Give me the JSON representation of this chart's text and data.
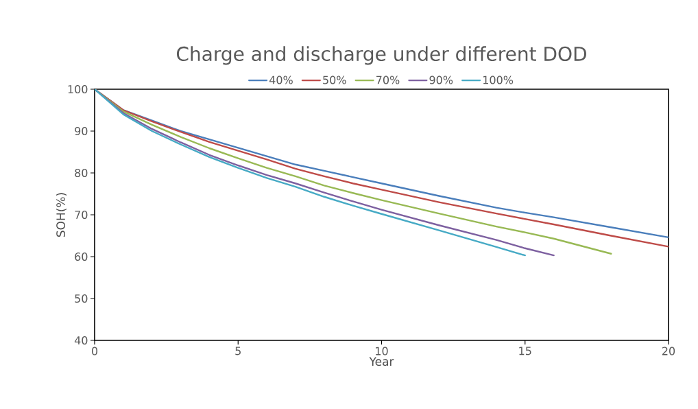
{
  "chart_data": {
    "type": "line",
    "title": "Charge and discharge under different DOD",
    "xlabel": "Year",
    "ylabel": "SOH(%)",
    "x": [
      0,
      1,
      2,
      3,
      4,
      5,
      6,
      7,
      8,
      9,
      10,
      12,
      14,
      15,
      16,
      18,
      20
    ],
    "series": [
      {
        "name": "40%",
        "color": "#4a7ebb",
        "values": [
          100,
          95,
          92.5,
          90,
          88,
          86,
          84,
          82,
          80.5,
          79,
          77.5,
          74.5,
          71.7,
          70.5,
          69.4,
          67,
          64.6
        ]
      },
      {
        "name": "50%",
        "color": "#be4b48",
        "values": [
          100,
          95,
          92.3,
          89.8,
          87.4,
          85.3,
          83.2,
          81,
          79.2,
          77.5,
          76,
          73,
          70.3,
          69,
          67.7,
          65,
          62.4
        ]
      },
      {
        "name": "70%",
        "color": "#98b954",
        "values": [
          100,
          94.7,
          91.5,
          88.6,
          85.9,
          83.5,
          81.2,
          79.2,
          77,
          75.2,
          73.5,
          70.3,
          67.2,
          65.8,
          64.3,
          60.7,
          null
        ]
      },
      {
        "name": "90%",
        "color": "#7d60a0",
        "values": [
          100,
          94.3,
          90.5,
          87.3,
          84.3,
          81.8,
          79.5,
          77.5,
          75.3,
          73.2,
          71.2,
          67.5,
          64,
          62,
          60.3,
          null,
          null
        ]
      },
      {
        "name": "100%",
        "color": "#46aac5",
        "values": [
          100,
          94,
          90,
          86.8,
          83.8,
          81.2,
          78.8,
          76.7,
          74.3,
          72.2,
          70.2,
          66.3,
          62.3,
          60.3,
          null,
          null,
          null
        ]
      }
    ],
    "xlim": [
      0,
      20
    ],
    "ylim": [
      40,
      100
    ],
    "xticks": [
      0,
      5,
      10,
      15,
      20
    ],
    "yticks": [
      40,
      50,
      60,
      70,
      80,
      90,
      100
    ],
    "grid": false,
    "legend": "top",
    "marker": "none",
    "line_style": "solid"
  }
}
